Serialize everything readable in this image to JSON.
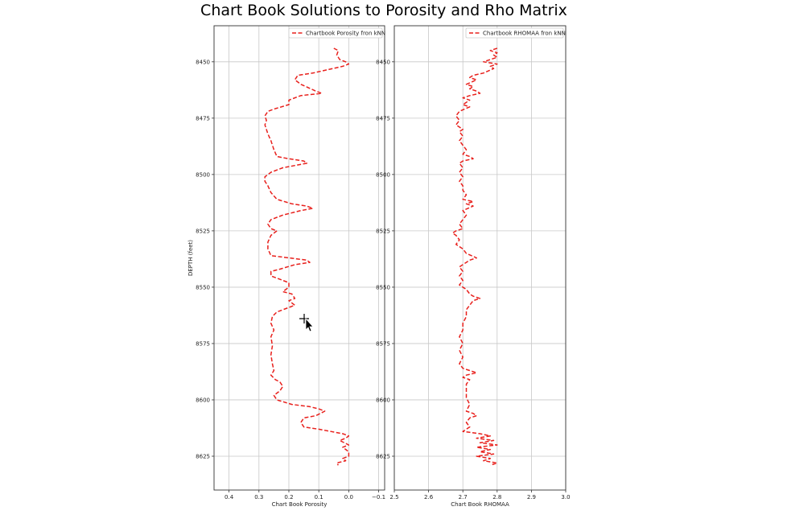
{
  "chart_data": [
    {
      "type": "line",
      "title": "Chart Book Solutions to Porosity and Rho Matrix",
      "xlabel": "Chart Book Porosity",
      "ylabel": "DEPTH (feet)",
      "xlim": [
        0.45,
        -0.12
      ],
      "ylim": [
        8640,
        8434
      ],
      "x_ticks": [
        "0.4",
        "0.3",
        "0.2",
        "0.1",
        "0.0",
        "−0.1"
      ],
      "x_tick_values": [
        0.4,
        0.3,
        0.2,
        0.1,
        0.0,
        -0.1
      ],
      "y_ticks": [
        "8450",
        "8475",
        "8500",
        "8525",
        "8550",
        "8575",
        "8600",
        "8625"
      ],
      "y_tick_values": [
        8450,
        8475,
        8500,
        8525,
        8550,
        8575,
        8600,
        8625
      ],
      "grid": true,
      "legend": "top-right",
      "series": [
        {
          "name": "Chartbook Porosity fron kNN",
          "color": "#e8201c",
          "style": "dashed",
          "points": [
            [
              0.05,
              8444
            ],
            [
              0.035,
              8445
            ],
            [
              0.04,
              8447
            ],
            [
              0.03,
              8449
            ],
            [
              0.01,
              8450
            ],
            [
              0.0,
              8451
            ],
            [
              0.02,
              8452
            ],
            [
              0.12,
              8455
            ],
            [
              0.17,
              8456
            ],
            [
              0.18,
              8458
            ],
            [
              0.16,
              8460
            ],
            [
              0.11,
              8463
            ],
            [
              0.09,
              8464
            ],
            [
              0.16,
              8465
            ],
            [
              0.2,
              8467
            ],
            [
              0.2,
              8469
            ],
            [
              0.25,
              8471
            ],
            [
              0.27,
              8472
            ],
            [
              0.28,
              8474
            ],
            [
              0.275,
              8476
            ],
            [
              0.28,
              8478
            ],
            [
              0.27,
              8482
            ],
            [
              0.26,
              8485
            ],
            [
              0.25,
              8489
            ],
            [
              0.24,
              8492
            ],
            [
              0.2,
              8493
            ],
            [
              0.15,
              8494
            ],
            [
              0.14,
              8495
            ],
            [
              0.18,
              8496
            ],
            [
              0.22,
              8497
            ],
            [
              0.26,
              8499
            ],
            [
              0.28,
              8501
            ],
            [
              0.28,
              8503
            ],
            [
              0.27,
              8505
            ],
            [
              0.26,
              8508
            ],
            [
              0.24,
              8511
            ],
            [
              0.19,
              8513
            ],
            [
              0.14,
              8514
            ],
            [
              0.12,
              8515
            ],
            [
              0.16,
              8516
            ],
            [
              0.22,
              8518
            ],
            [
              0.26,
              8520
            ],
            [
              0.27,
              8522
            ],
            [
              0.26,
              8524
            ],
            [
              0.24,
              8525
            ],
            [
              0.26,
              8527
            ],
            [
              0.27,
              8530
            ],
            [
              0.27,
              8533
            ],
            [
              0.26,
              8536
            ],
            [
              0.2,
              8537
            ],
            [
              0.14,
              8538
            ],
            [
              0.13,
              8539
            ],
            [
              0.18,
              8540
            ],
            [
              0.23,
              8542
            ],
            [
              0.26,
              8543
            ],
            [
              0.26,
              8545
            ],
            [
              0.22,
              8547
            ],
            [
              0.2,
              8548
            ],
            [
              0.2,
              8550
            ],
            [
              0.22,
              8552
            ],
            [
              0.19,
              8553
            ],
            [
              0.18,
              8555
            ],
            [
              0.2,
              8556
            ],
            [
              0.19,
              8557
            ],
            [
              0.18,
              8558
            ],
            [
              0.2,
              8559
            ],
            [
              0.24,
              8561
            ],
            [
              0.255,
              8563
            ],
            [
              0.26,
              8566
            ],
            [
              0.25,
              8569
            ],
            [
              0.26,
              8572
            ],
            [
              0.255,
              8576
            ],
            [
              0.26,
              8580
            ],
            [
              0.255,
              8584
            ],
            [
              0.25,
              8587
            ],
            [
              0.26,
              8589
            ],
            [
              0.245,
              8591
            ],
            [
              0.23,
              8592
            ],
            [
              0.22,
              8594
            ],
            [
              0.23,
              8596
            ],
            [
              0.25,
              8598
            ],
            [
              0.24,
              8600
            ],
            [
              0.19,
              8602
            ],
            [
              0.13,
              8603
            ],
            [
              0.1,
              8604
            ],
            [
              0.08,
              8605
            ],
            [
              0.11,
              8607
            ],
            [
              0.15,
              8608
            ],
            [
              0.16,
              8610
            ],
            [
              0.15,
              8612
            ],
            [
              0.1,
              8613
            ],
            [
              0.06,
              8614
            ],
            [
              0.02,
              8615
            ],
            [
              0.0,
              8616
            ],
            [
              0.01,
              8617
            ],
            [
              0.03,
              8618
            ],
            [
              0.0,
              8620
            ],
            [
              0.02,
              8621
            ],
            [
              0.0,
              8623
            ],
            [
              0.0,
              8625
            ],
            [
              0.02,
              8626
            ],
            [
              0.01,
              8627
            ],
            [
              0.04,
              8628
            ],
            [
              0.035,
              8629
            ]
          ]
        }
      ]
    },
    {
      "type": "line",
      "xlabel": "Chart Book RHOMAA",
      "ylabel": "",
      "xlim": [
        2.5,
        3.0
      ],
      "ylim": [
        8640,
        8434
      ],
      "x_ticks": [
        "2.5",
        "2.6",
        "2.7",
        "2.8",
        "2.9",
        "3.0"
      ],
      "x_tick_values": [
        2.5,
        2.6,
        2.7,
        2.8,
        2.9,
        3.0
      ],
      "y_ticks": [
        "8450",
        "8475",
        "8500",
        "8525",
        "8550",
        "8575",
        "8600",
        "8625"
      ],
      "y_tick_values": [
        8450,
        8475,
        8500,
        8525,
        8550,
        8575,
        8600,
        8625
      ],
      "grid": true,
      "legend": "top-right",
      "series": [
        {
          "name": "Chartbook RHOMAA fron kNN",
          "color": "#e8201c",
          "style": "dashed",
          "points": [
            [
              2.8,
              8444
            ],
            [
              2.78,
              8445
            ],
            [
              2.8,
              8446
            ],
            [
              2.79,
              8447
            ],
            [
              2.8,
              8448
            ],
            [
              2.78,
              8449
            ],
            [
              2.76,
              8450
            ],
            [
              2.8,
              8451
            ],
            [
              2.78,
              8452
            ],
            [
              2.79,
              8453
            ],
            [
              2.76,
              8455
            ],
            [
              2.73,
              8456
            ],
            [
              2.72,
              8457
            ],
            [
              2.74,
              8458
            ],
            [
              2.71,
              8460
            ],
            [
              2.73,
              8461
            ],
            [
              2.72,
              8462
            ],
            [
              2.74,
              8463
            ],
            [
              2.75,
              8464
            ],
            [
              2.72,
              8465
            ],
            [
              2.7,
              8466
            ],
            [
              2.72,
              8467
            ],
            [
              2.71,
              8468
            ],
            [
              2.7,
              8469
            ],
            [
              2.72,
              8470
            ],
            [
              2.69,
              8472
            ],
            [
              2.68,
              8474
            ],
            [
              2.69,
              8476
            ],
            [
              2.68,
              8478
            ],
            [
              2.7,
              8480
            ],
            [
              2.69,
              8481
            ],
            [
              2.7,
              8483
            ],
            [
              2.69,
              8485
            ],
            [
              2.7,
              8487
            ],
            [
              2.71,
              8489
            ],
            [
              2.7,
              8491
            ],
            [
              2.72,
              8492
            ],
            [
              2.73,
              8493
            ],
            [
              2.7,
              8494
            ],
            [
              2.69,
              8495
            ],
            [
              2.7,
              8497
            ],
            [
              2.69,
              8499
            ],
            [
              2.7,
              8501
            ],
            [
              2.69,
              8503
            ],
            [
              2.7,
              8505
            ],
            [
              2.7,
              8507
            ],
            [
              2.71,
              8509
            ],
            [
              2.7,
              8511
            ],
            [
              2.73,
              8512
            ],
            [
              2.71,
              8513
            ],
            [
              2.73,
              8514
            ],
            [
              2.7,
              8516
            ],
            [
              2.71,
              8518
            ],
            [
              2.7,
              8520
            ],
            [
              2.69,
              8522
            ],
            [
              2.7,
              8524
            ],
            [
              2.68,
              8525
            ],
            [
              2.67,
              8526
            ],
            [
              2.68,
              8527
            ],
            [
              2.69,
              8529
            ],
            [
              2.68,
              8531
            ],
            [
              2.7,
              8533
            ],
            [
              2.71,
              8535
            ],
            [
              2.74,
              8537
            ],
            [
              2.72,
              8538
            ],
            [
              2.71,
              8539
            ],
            [
              2.7,
              8540
            ],
            [
              2.69,
              8541
            ],
            [
              2.7,
              8543
            ],
            [
              2.69,
              8545
            ],
            [
              2.7,
              8547
            ],
            [
              2.69,
              8549
            ],
            [
              2.71,
              8551
            ],
            [
              2.72,
              8553
            ],
            [
              2.73,
              8554
            ],
            [
              2.75,
              8555
            ],
            [
              2.73,
              8556
            ],
            [
              2.72,
              8558
            ],
            [
              2.71,
              8560
            ],
            [
              2.71,
              8563
            ],
            [
              2.7,
              8566
            ],
            [
              2.7,
              8569
            ],
            [
              2.69,
              8572
            ],
            [
              2.7,
              8575
            ],
            [
              2.69,
              8578
            ],
            [
              2.7,
              8581
            ],
            [
              2.69,
              8584
            ],
            [
              2.7,
              8586
            ],
            [
              2.72,
              8587
            ],
            [
              2.74,
              8588
            ],
            [
              2.71,
              8589
            ],
            [
              2.7,
              8590
            ],
            [
              2.72,
              8591
            ],
            [
              2.71,
              8593
            ],
            [
              2.71,
              8596
            ],
            [
              2.71,
              8599
            ],
            [
              2.72,
              8602
            ],
            [
              2.71,
              8605
            ],
            [
              2.73,
              8606
            ],
            [
              2.74,
              8607
            ],
            [
              2.72,
              8608
            ],
            [
              2.71,
              8610
            ],
            [
              2.72,
              8612
            ],
            [
              2.7,
              8614
            ],
            [
              2.75,
              8615
            ],
            [
              2.78,
              8616
            ],
            [
              2.74,
              8617
            ],
            [
              2.79,
              8618
            ],
            [
              2.75,
              8619
            ],
            [
              2.8,
              8620
            ],
            [
              2.74,
              8621
            ],
            [
              2.78,
              8622
            ],
            [
              2.75,
              8623
            ],
            [
              2.79,
              8624
            ],
            [
              2.74,
              8625
            ],
            [
              2.78,
              8626
            ],
            [
              2.76,
              8627
            ],
            [
              2.8,
              8628
            ],
            [
              2.78,
              8629
            ]
          ]
        }
      ]
    }
  ]
}
